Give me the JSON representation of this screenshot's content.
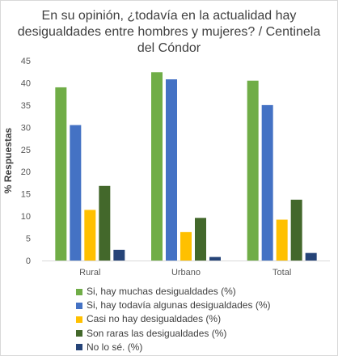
{
  "chart_data": {
    "type": "bar",
    "title_lines": [
      "En su opinión, ¿todavía en la actualidad hay",
      "desigualdades entre hombres y mujeres? / Centinela",
      "del Cóndor"
    ],
    "ylabel": "% Respuestas",
    "xlabel": "",
    "ylim": [
      0,
      45
    ],
    "yticks": [
      "0",
      "5",
      "10",
      "15",
      "20",
      "25",
      "30",
      "35",
      "40",
      "45"
    ],
    "grid": false,
    "legend_position": "bottom",
    "categories": [
      "Rural",
      "Urbano",
      "Total"
    ],
    "series": [
      {
        "name": "Si, hay muchas desigualdades (%)",
        "color": "#70ad47",
        "values": [
          39.0,
          42.4,
          40.5
        ]
      },
      {
        "name": "Si, hay todavía algunas desigualdades (%)",
        "color": "#4472c4",
        "values": [
          30.5,
          40.8,
          35.0
        ]
      },
      {
        "name": "Casi no hay desigualdades (%)",
        "color": "#ffc000",
        "values": [
          11.4,
          6.4,
          9.2
        ]
      },
      {
        "name": "Son raras las desigualdades (%)",
        "color": "#43682b",
        "values": [
          16.8,
          9.6,
          13.7
        ]
      },
      {
        "name": "No lo sé. (%)",
        "color": "#264478",
        "values": [
          2.4,
          0.8,
          1.7
        ]
      }
    ]
  }
}
